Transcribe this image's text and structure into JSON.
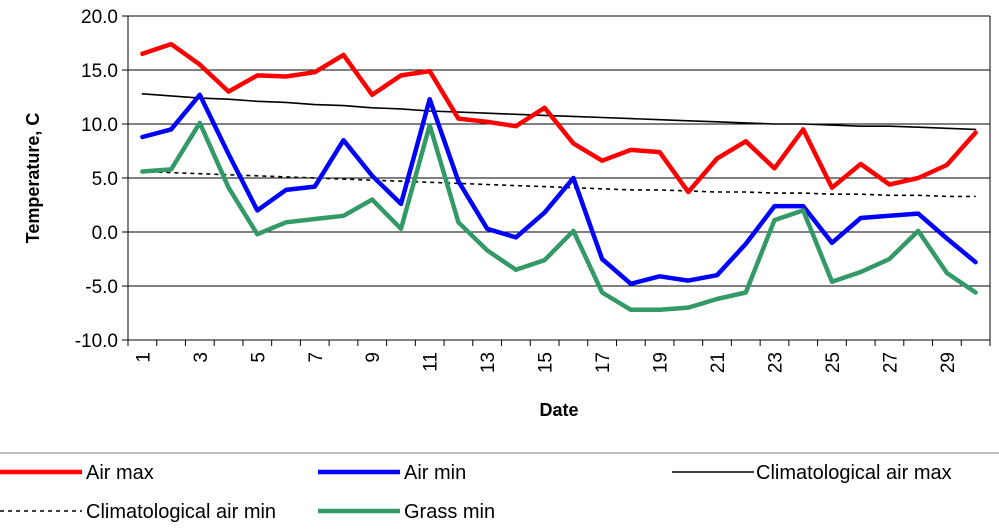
{
  "chart_data": {
    "type": "line",
    "xlabel": "Date",
    "ylabel": "Temperature, C",
    "x": [
      1,
      2,
      3,
      4,
      5,
      6,
      7,
      8,
      9,
      10,
      11,
      12,
      13,
      14,
      15,
      16,
      17,
      18,
      19,
      20,
      21,
      22,
      23,
      24,
      25,
      26,
      27,
      28,
      29,
      30
    ],
    "x_tick_labels": [
      "1",
      "3",
      "5",
      "7",
      "9",
      "11",
      "13",
      "15",
      "17",
      "19",
      "21",
      "23",
      "25",
      "27",
      "29"
    ],
    "x_tick_values": [
      1,
      3,
      5,
      7,
      9,
      11,
      13,
      15,
      17,
      19,
      21,
      23,
      25,
      27,
      29
    ],
    "y_tick_labels": [
      "20.0",
      "15.0",
      "10.0",
      "5.0",
      "0.0",
      "-5.0",
      "-10.0"
    ],
    "y_tick_values": [
      20,
      15,
      10,
      5,
      0,
      -5,
      -10
    ],
    "ylim": [
      -10,
      20
    ],
    "xlim": [
      0.5,
      30.5
    ],
    "grid": "horizontal",
    "legend_position": "bottom",
    "series": [
      {
        "name": "Air max",
        "color": "#ff0000",
        "style": "solid-thick",
        "values": [
          16.5,
          17.4,
          15.5,
          13.0,
          14.5,
          14.4,
          14.8,
          16.4,
          12.7,
          14.5,
          14.9,
          10.5,
          10.2,
          9.8,
          11.5,
          8.2,
          6.6,
          7.6,
          7.4,
          3.7,
          6.8,
          8.4,
          5.9,
          9.5,
          4.1,
          6.3,
          4.4,
          5.0,
          6.2,
          9.2
        ]
      },
      {
        "name": "Air min",
        "color": "#0000ff",
        "style": "solid-thick",
        "values": [
          8.8,
          9.5,
          12.7,
          7.2,
          2.0,
          3.9,
          4.2,
          8.5,
          5.2,
          2.6,
          12.3,
          4.7,
          0.3,
          -0.5,
          1.8,
          5.0,
          -2.5,
          -4.8,
          -4.1,
          -4.5,
          -4.0,
          -1.1,
          2.4,
          2.4,
          -1.0,
          1.3,
          1.5,
          1.7,
          -0.6,
          -2.8
        ]
      },
      {
        "name": "Climatological air max",
        "color": "#000000",
        "style": "solid-thin",
        "values": [
          12.8,
          12.6,
          12.4,
          12.3,
          12.1,
          12.0,
          11.8,
          11.7,
          11.5,
          11.4,
          11.2,
          11.1,
          11.0,
          10.9,
          10.8,
          10.7,
          10.6,
          10.5,
          10.4,
          10.3,
          10.2,
          10.1,
          10.0,
          10.0,
          9.9,
          9.8,
          9.8,
          9.7,
          9.6,
          9.5
        ]
      },
      {
        "name": "Climatological air min",
        "color": "#000000",
        "style": "dotted",
        "values": [
          5.6,
          5.5,
          5.4,
          5.3,
          5.2,
          5.1,
          5.0,
          4.9,
          4.8,
          4.7,
          4.6,
          4.5,
          4.4,
          4.3,
          4.2,
          4.1,
          4.0,
          3.9,
          3.9,
          3.8,
          3.7,
          3.7,
          3.6,
          3.6,
          3.5,
          3.5,
          3.4,
          3.4,
          3.3,
          3.3
        ]
      },
      {
        "name": "Grass min",
        "color": "#339966",
        "style": "solid-thick",
        "values": [
          5.6,
          5.8,
          10.1,
          4.1,
          -0.2,
          0.9,
          1.2,
          1.5,
          3.0,
          0.3,
          9.9,
          0.9,
          -1.7,
          -3.5,
          -2.6,
          0.1,
          -5.6,
          -7.2,
          -7.2,
          -7.0,
          -6.2,
          -5.6,
          1.1,
          2.0,
          -4.6,
          -3.7,
          -2.5,
          0.1,
          -3.8,
          -5.6
        ]
      }
    ]
  }
}
